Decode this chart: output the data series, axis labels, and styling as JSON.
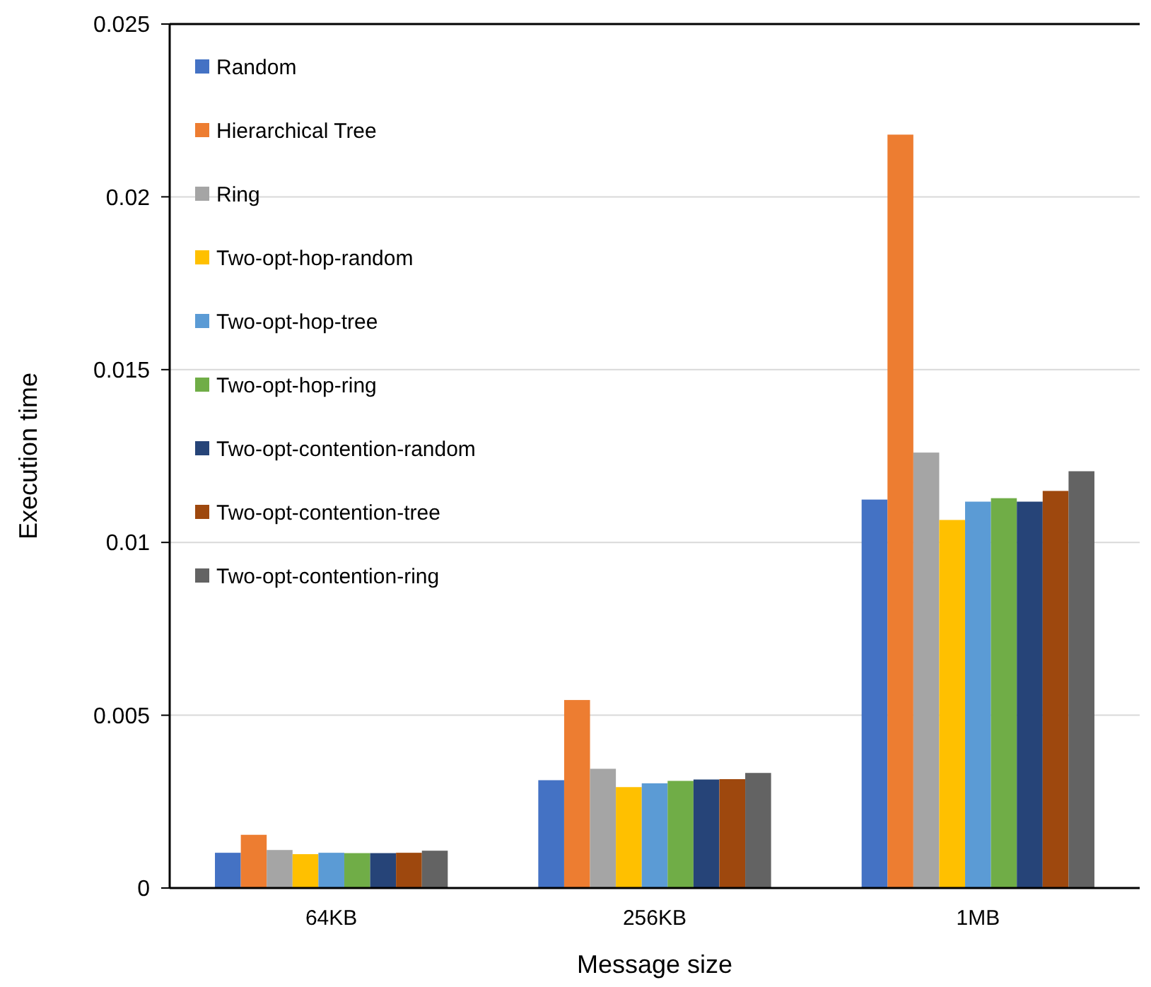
{
  "chart_data": {
    "type": "bar",
    "xlabel": "Message size",
    "ylabel": "Execution time",
    "categories": [
      "64KB",
      "256KB",
      "1MB"
    ],
    "series": [
      {
        "name": "Random",
        "color": "#4472c4",
        "values": [
          0.00102,
          0.00312,
          0.01124
        ]
      },
      {
        "name": "Hierarchical Tree",
        "color": "#ed7d31",
        "values": [
          0.00154,
          0.00544,
          0.0218
        ]
      },
      {
        "name": "Ring",
        "color": "#a5a5a5",
        "values": [
          0.0011,
          0.00345,
          0.0126
        ]
      },
      {
        "name": "Two-opt-hop-random",
        "color": "#ffc000",
        "values": [
          0.00098,
          0.00292,
          0.01065
        ]
      },
      {
        "name": "Two-opt-hop-tree",
        "color": "#5b9bd5",
        "values": [
          0.00102,
          0.00303,
          0.01118
        ]
      },
      {
        "name": "Two-opt-hop-ring",
        "color": "#70ad47",
        "values": [
          0.00101,
          0.0031,
          0.01128
        ]
      },
      {
        "name": "Two-opt-contention-random",
        "color": "#264478",
        "values": [
          0.00101,
          0.00314,
          0.01118
        ]
      },
      {
        "name": "Two-opt-contention-tree",
        "color": "#9e480e",
        "values": [
          0.00102,
          0.00315,
          0.01149
        ]
      },
      {
        "name": "Two-opt-contention-ring",
        "color": "#636363",
        "values": [
          0.00108,
          0.00333,
          0.01206
        ]
      }
    ],
    "ylim": [
      0,
      0.025
    ],
    "yticks": [
      0,
      0.005,
      0.01,
      0.015,
      0.02,
      0.025
    ],
    "grid": "y",
    "legend": "top left"
  }
}
